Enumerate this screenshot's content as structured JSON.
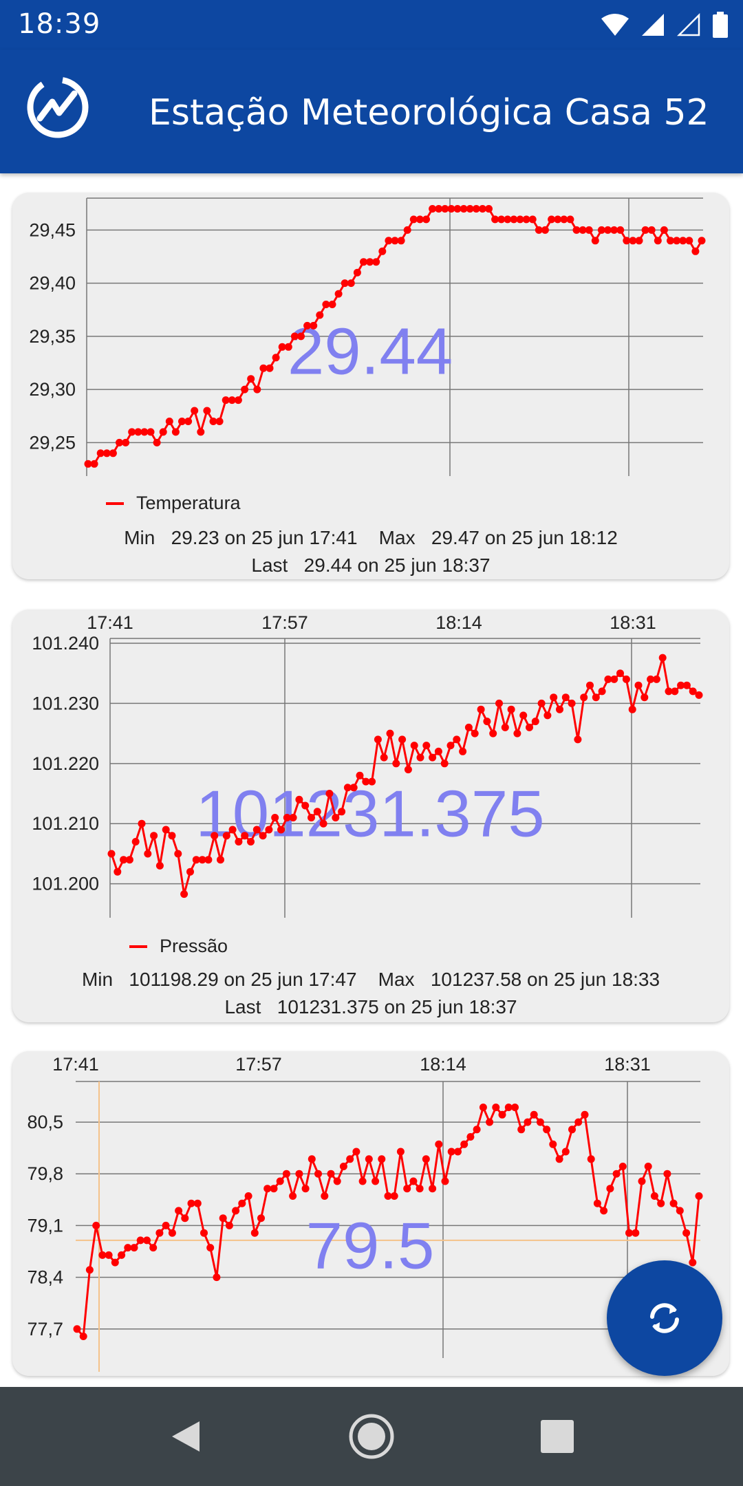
{
  "status_bar": {
    "time": "18:39"
  },
  "app_bar": {
    "title": "Estação Meteorológica Casa 52",
    "logo_icon": "chart-circle-logo"
  },
  "colors": {
    "primary": "#0d47a1",
    "series": "#ff0000",
    "big_value": "#8080f0",
    "card": "#eeeeee"
  },
  "cards": [
    {
      "big_value": "29.44",
      "legend": "Temperatura",
      "stats_line1": "Min   29.23 on 25 jun 17:41    Max   29.47 on 25 jun 18:12",
      "stats_line2": "Last   29.44 on 25 jun 18:37"
    },
    {
      "big_value": "101231.375",
      "legend": "Pressão",
      "stats_line1": "Min   101198.29 on 25 jun 17:47    Max   101237.58 on 25 jun 18:33",
      "stats_line2": "Last   101231.375 on 25 jun 18:37"
    },
    {
      "big_value": "79.5",
      "legend": "",
      "stats_line1": "",
      "stats_line2": ""
    }
  ],
  "chart_data": [
    {
      "type": "line",
      "series": [
        {
          "name": "Temperatura",
          "values": [
            29.23,
            29.23,
            29.24,
            29.24,
            29.24,
            29.25,
            29.25,
            29.26,
            29.26,
            29.26,
            29.26,
            29.25,
            29.26,
            29.27,
            29.26,
            29.27,
            29.27,
            29.28,
            29.26,
            29.28,
            29.27,
            29.27,
            29.29,
            29.29,
            29.29,
            29.3,
            29.31,
            29.3,
            29.32,
            29.32,
            29.33,
            29.34,
            29.34,
            29.35,
            29.35,
            29.36,
            29.36,
            29.37,
            29.38,
            29.38,
            29.39,
            29.4,
            29.4,
            29.41,
            29.42,
            29.42,
            29.42,
            29.43,
            29.44,
            29.44,
            29.44,
            29.45,
            29.46,
            29.46,
            29.46,
            29.47,
            29.47,
            29.47,
            29.47,
            29.47,
            29.47,
            29.47,
            29.47,
            29.47,
            29.47,
            29.46,
            29.46,
            29.46,
            29.46,
            29.46,
            29.46,
            29.46,
            29.45,
            29.45,
            29.46,
            29.46,
            29.46,
            29.46,
            29.45,
            29.45,
            29.45,
            29.44,
            29.45,
            29.45,
            29.45,
            29.45,
            29.44,
            29.44,
            29.44,
            29.45,
            29.45,
            29.44,
            29.45,
            29.44,
            29.44,
            29.44,
            29.44,
            29.43,
            29.44
          ]
        }
      ],
      "y_ticks": [
        "29,25",
        "29,30",
        "29,35",
        "29,40",
        "29,45"
      ],
      "ylim": [
        29.225,
        29.48
      ]
    },
    {
      "type": "line",
      "x_ticks": [
        "17:41",
        "17:57",
        "18:14",
        "18:31"
      ],
      "series": [
        {
          "name": "Pressão",
          "values": [
            101205,
            101202,
            101204,
            101204,
            101207,
            101210,
            101205,
            101208,
            101203,
            101209,
            101208,
            101205,
            101198.29,
            101202,
            101204,
            101204,
            101204,
            101208,
            101204,
            101208,
            101209,
            101207,
            101208,
            101207,
            101209,
            101208,
            101209,
            101211,
            101209,
            101211,
            101211,
            101214,
            101213,
            101211,
            101212,
            101210,
            101215,
            101211,
            101212,
            101216,
            101216,
            101218,
            101217,
            101217,
            101224,
            101221,
            101225,
            101220,
            101224,
            101219,
            101223,
            101221,
            101223,
            101221,
            101222,
            101220,
            101223,
            101224,
            101222,
            101226,
            101225,
            101229,
            101227,
            101225,
            101230,
            101226,
            101229,
            101225,
            101228,
            101226,
            101227,
            101230,
            101228,
            101231,
            101229,
            101231,
            101230,
            101224,
            101231,
            101233,
            101231,
            101232,
            101234,
            101234,
            101235,
            101234,
            101229,
            101233,
            101231,
            101234,
            101234,
            101237.58,
            101232,
            101232,
            101233,
            101233,
            101232,
            101231.375
          ]
        }
      ],
      "y_ticks": [
        "101.200",
        "101.210",
        "101.220",
        "101.230",
        "101.240"
      ],
      "ylim": [
        101195.5,
        101240.8
      ]
    },
    {
      "type": "line",
      "x_ticks": [
        "17:41",
        "17:57",
        "18:14",
        "18:31"
      ],
      "series": [
        {
          "values": [
            77.7,
            77.6,
            78.5,
            79.1,
            78.7,
            78.7,
            78.6,
            78.7,
            78.8,
            78.8,
            78.9,
            78.9,
            78.8,
            79.0,
            79.1,
            79.0,
            79.3,
            79.2,
            79.4,
            79.4,
            79.0,
            78.8,
            78.4,
            79.2,
            79.1,
            79.3,
            79.4,
            79.5,
            79.0,
            79.2,
            79.6,
            79.6,
            79.7,
            79.8,
            79.5,
            79.8,
            79.6,
            80.0,
            79.8,
            79.5,
            79.8,
            79.7,
            79.9,
            80.0,
            80.1,
            79.7,
            80.0,
            79.7,
            80.0,
            79.5,
            79.5,
            80.1,
            79.6,
            79.7,
            79.6,
            80.0,
            79.6,
            80.2,
            79.7,
            80.1,
            80.1,
            80.2,
            80.3,
            80.4,
            80.7,
            80.5,
            80.7,
            80.6,
            80.7,
            80.7,
            80.4,
            80.5,
            80.6,
            80.5,
            80.4,
            80.2,
            80.0,
            80.1,
            80.4,
            80.5,
            80.6,
            80.0,
            79.4,
            79.3,
            79.6,
            79.8,
            79.9,
            79.0,
            79.0,
            79.7,
            79.9,
            79.5,
            79.4,
            79.8,
            79.4,
            79.3,
            79.0,
            78.6,
            79.5
          ]
        }
      ],
      "y_ticks": [
        "77,7",
        "78,4",
        "79,1",
        "79,8",
        "80,5"
      ],
      "ylim": [
        77.4,
        81.05
      ]
    }
  ],
  "fab": {
    "icon": "refresh-icon"
  },
  "nav": {
    "back_icon": "back-icon",
    "home_icon": "home-icon",
    "recents_icon": "recents-icon"
  }
}
